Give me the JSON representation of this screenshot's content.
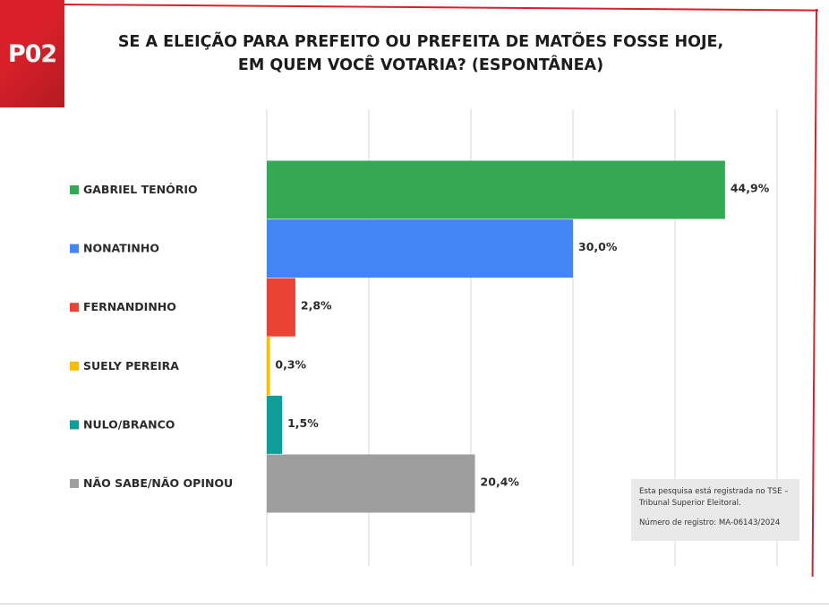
{
  "badge": "P02",
  "title_lines": [
    "SE A ELEIÇÃO PARA PREFEITO OU PREFEITA DE MATÕES FOSSE HOJE,",
    "EM QUEM VOCÊ VOTARIA? (ESPONTÂNEA)"
  ],
  "note": {
    "line1": "Esta pesquisa está registrada no TSE – Tribunal Superior Eleitoral.",
    "line2": "Número de registro: MA-06143/2024"
  },
  "colors": {
    "accent": "#d9202a",
    "grid": "#d9d9d9"
  },
  "chart_data": {
    "type": "bar",
    "orientation": "horizontal",
    "categories": [
      "GABRIEL TENÓRIO",
      "NONATINHO",
      "FERNANDINHO",
      "SUELY PEREIRA",
      "NULO/BRANCO",
      "NÃO SABE/NÃO OPINOU"
    ],
    "values": [
      44.9,
      30.0,
      2.8,
      0.3,
      1.5,
      20.4
    ],
    "data_labels": [
      "44,9%",
      "30,0%",
      "2,8%",
      "0,3%",
      "1,5%",
      "20,4%"
    ],
    "colors": [
      "#34a853",
      "#4285f4",
      "#ea4335",
      "#fbbc04",
      "#0f9d9a",
      "#9e9e9e"
    ],
    "xlim": [
      0,
      50
    ],
    "grid_step": 10,
    "grid": true,
    "legend": "left"
  }
}
